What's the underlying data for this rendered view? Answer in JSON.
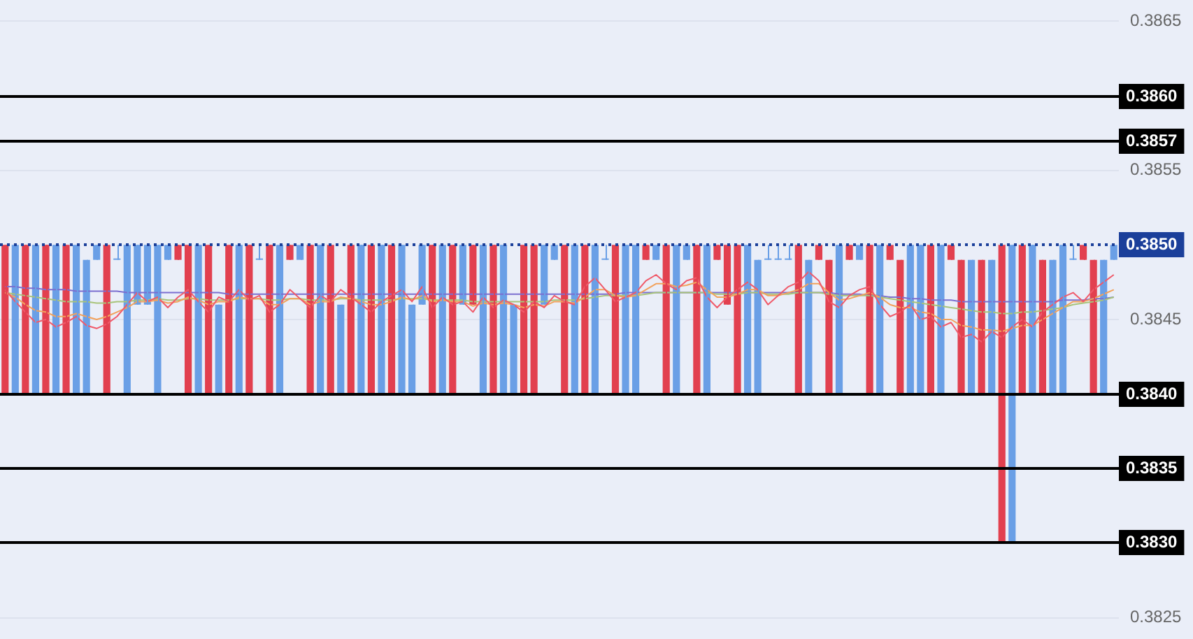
{
  "chart_data": {
    "type": "candlestick",
    "categories": [
      null,
      null,
      null,
      null,
      null,
      null,
      null,
      null,
      null,
      null,
      null,
      null,
      null,
      null,
      null,
      null,
      null,
      null,
      null,
      null,
      null,
      null,
      null,
      null,
      null,
      null,
      null,
      null,
      null,
      null,
      null,
      null,
      null,
      null,
      null,
      null,
      null,
      null,
      null,
      null,
      null,
      null,
      null,
      null,
      null,
      null,
      null,
      null,
      null,
      null,
      null,
      null,
      null,
      null,
      null,
      null,
      null,
      null,
      null,
      null,
      null,
      null,
      null,
      null,
      null,
      null,
      null,
      null,
      null,
      null,
      null,
      null,
      null,
      null,
      null,
      null,
      null,
      null,
      null,
      null,
      null,
      null,
      null,
      null,
      null,
      null,
      null,
      null,
      null,
      null,
      null,
      null,
      null,
      null,
      null,
      null,
      null,
      null,
      null,
      null,
      null,
      null,
      null,
      null,
      null,
      null,
      null,
      null,
      null,
      null
    ],
    "ohlc": [
      [
        0.385,
        0.385,
        0.384,
        0.384
      ],
      [
        0.384,
        0.385,
        0.384,
        0.385
      ],
      [
        0.385,
        0.385,
        0.384,
        0.384
      ],
      [
        0.384,
        0.385,
        0.384,
        0.385
      ],
      [
        0.385,
        0.385,
        0.384,
        0.384
      ],
      [
        0.384,
        0.385,
        0.384,
        0.385
      ],
      [
        0.385,
        0.385,
        0.384,
        0.384
      ],
      [
        0.384,
        0.385,
        0.384,
        0.385
      ],
      [
        0.384,
        0.3849,
        0.384,
        0.3849
      ],
      [
        0.3849,
        0.385,
        0.3849,
        0.385
      ],
      [
        0.385,
        0.385,
        0.384,
        0.384
      ],
      [
        0.3849,
        0.385,
        0.3849,
        0.3849
      ],
      [
        0.384,
        0.385,
        0.384,
        0.385
      ],
      [
        0.3846,
        0.385,
        0.3846,
        0.385
      ],
      [
        0.3846,
        0.385,
        0.3846,
        0.385
      ],
      [
        0.384,
        0.385,
        0.384,
        0.385
      ],
      [
        0.3849,
        0.385,
        0.3849,
        0.385
      ],
      [
        0.385,
        0.385,
        0.3849,
        0.3849
      ],
      [
        0.385,
        0.385,
        0.384,
        0.384
      ],
      [
        0.384,
        0.385,
        0.384,
        0.385
      ],
      [
        0.385,
        0.385,
        0.384,
        0.384
      ],
      [
        0.384,
        0.3846,
        0.384,
        0.3846
      ],
      [
        0.385,
        0.385,
        0.384,
        0.384
      ],
      [
        0.384,
        0.385,
        0.384,
        0.385
      ],
      [
        0.385,
        0.385,
        0.384,
        0.384
      ],
      [
        0.3849,
        0.385,
        0.3849,
        0.3849
      ],
      [
        0.385,
        0.385,
        0.384,
        0.384
      ],
      [
        0.384,
        0.385,
        0.384,
        0.385
      ],
      [
        0.385,
        0.385,
        0.3849,
        0.3849
      ],
      [
        0.3849,
        0.385,
        0.3849,
        0.385
      ],
      [
        0.385,
        0.385,
        0.384,
        0.384
      ],
      [
        0.384,
        0.385,
        0.384,
        0.385
      ],
      [
        0.385,
        0.385,
        0.384,
        0.384
      ],
      [
        0.384,
        0.3846,
        0.384,
        0.3846
      ],
      [
        0.385,
        0.385,
        0.384,
        0.384
      ],
      [
        0.384,
        0.385,
        0.384,
        0.385
      ],
      [
        0.385,
        0.385,
        0.384,
        0.384
      ],
      [
        0.384,
        0.385,
        0.384,
        0.385
      ],
      [
        0.385,
        0.385,
        0.384,
        0.384
      ],
      [
        0.384,
        0.385,
        0.384,
        0.385
      ],
      [
        0.384,
        0.3846,
        0.384,
        0.3846
      ],
      [
        0.3846,
        0.385,
        0.3846,
        0.385
      ],
      [
        0.385,
        0.385,
        0.384,
        0.384
      ],
      [
        0.384,
        0.385,
        0.384,
        0.385
      ],
      [
        0.385,
        0.385,
        0.384,
        0.384
      ],
      [
        0.3846,
        0.385,
        0.3846,
        0.385
      ],
      [
        0.385,
        0.385,
        0.3846,
        0.3846
      ],
      [
        0.384,
        0.385,
        0.384,
        0.385
      ],
      [
        0.385,
        0.385,
        0.384,
        0.384
      ],
      [
        0.384,
        0.385,
        0.384,
        0.385
      ],
      [
        0.384,
        0.3846,
        0.384,
        0.3846
      ],
      [
        0.385,
        0.385,
        0.384,
        0.384
      ],
      [
        0.385,
        0.385,
        0.384,
        0.384
      ],
      [
        0.3846,
        0.385,
        0.3846,
        0.385
      ],
      [
        0.3849,
        0.385,
        0.3849,
        0.385
      ],
      [
        0.385,
        0.385,
        0.384,
        0.384
      ],
      [
        0.384,
        0.385,
        0.384,
        0.385
      ],
      [
        0.385,
        0.385,
        0.384,
        0.384
      ],
      [
        0.384,
        0.385,
        0.384,
        0.385
      ],
      [
        0.3849,
        0.385,
        0.3849,
        0.3849
      ],
      [
        0.385,
        0.385,
        0.384,
        0.384
      ],
      [
        0.384,
        0.385,
        0.384,
        0.385
      ],
      [
        0.384,
        0.385,
        0.384,
        0.385
      ],
      [
        0.385,
        0.385,
        0.3849,
        0.3849
      ],
      [
        0.3849,
        0.385,
        0.3849,
        0.385
      ],
      [
        0.385,
        0.385,
        0.384,
        0.384
      ],
      [
        0.384,
        0.385,
        0.384,
        0.385
      ],
      [
        0.3849,
        0.385,
        0.3849,
        0.385
      ],
      [
        0.385,
        0.385,
        0.384,
        0.384
      ],
      [
        0.384,
        0.385,
        0.384,
        0.385
      ],
      [
        0.385,
        0.385,
        0.3849,
        0.3849
      ],
      [
        0.385,
        0.385,
        0.3846,
        0.3846
      ],
      [
        0.385,
        0.385,
        0.384,
        0.384
      ],
      [
        0.384,
        0.385,
        0.384,
        0.385
      ],
      [
        0.384,
        0.3849,
        0.384,
        0.3849
      ],
      [
        0.3849,
        0.385,
        0.3849,
        0.3849
      ],
      [
        0.3849,
        0.385,
        0.3849,
        0.3849
      ],
      [
        0.3849,
        0.385,
        0.3849,
        0.3849
      ],
      [
        0.385,
        0.385,
        0.384,
        0.384
      ],
      [
        0.384,
        0.3849,
        0.384,
        0.3849
      ],
      [
        0.385,
        0.385,
        0.3849,
        0.3849
      ],
      [
        0.3849,
        0.3849,
        0.384,
        0.384
      ],
      [
        0.384,
        0.385,
        0.384,
        0.385
      ],
      [
        0.385,
        0.385,
        0.3849,
        0.3849
      ],
      [
        0.3849,
        0.385,
        0.3849,
        0.385
      ],
      [
        0.385,
        0.385,
        0.384,
        0.384
      ],
      [
        0.384,
        0.385,
        0.384,
        0.385
      ],
      [
        0.385,
        0.385,
        0.3849,
        0.3849
      ],
      [
        0.3849,
        0.3849,
        0.384,
        0.384
      ],
      [
        0.384,
        0.385,
        0.384,
        0.385
      ],
      [
        0.384,
        0.385,
        0.384,
        0.385
      ],
      [
        0.385,
        0.385,
        0.384,
        0.384
      ],
      [
        0.384,
        0.385,
        0.384,
        0.385
      ],
      [
        0.385,
        0.385,
        0.3849,
        0.3849
      ],
      [
        0.3849,
        0.3849,
        0.384,
        0.384
      ],
      [
        0.384,
        0.3849,
        0.384,
        0.3849
      ],
      [
        0.3849,
        0.3849,
        0.384,
        0.384
      ],
      [
        0.384,
        0.3849,
        0.384,
        0.3849
      ],
      [
        0.385,
        0.385,
        0.383,
        0.383
      ],
      [
        0.383,
        0.385,
        0.383,
        0.385
      ],
      [
        0.385,
        0.385,
        0.384,
        0.384
      ],
      [
        0.384,
        0.385,
        0.384,
        0.385
      ],
      [
        0.3849,
        0.3849,
        0.384,
        0.384
      ],
      [
        0.384,
        0.3849,
        0.384,
        0.3849
      ],
      [
        0.384,
        0.385,
        0.384,
        0.385
      ],
      [
        0.3849,
        0.385,
        0.3849,
        0.3849
      ],
      [
        0.385,
        0.385,
        0.3849,
        0.3849
      ],
      [
        0.3849,
        0.3849,
        0.384,
        0.384
      ],
      [
        0.384,
        0.3849,
        0.384,
        0.3849
      ],
      [
        0.3849,
        0.385,
        0.3849,
        0.385
      ]
    ],
    "colors": [
      "#e2404f",
      "#6a9fe6",
      "#e2404f",
      "#6a9fe6",
      "#e2404f",
      "#6a9fe6",
      "#e2404f",
      "#6a9fe6",
      "#6a9fe6",
      "#6a9fe6",
      "#e2404f",
      "#6a9fe6",
      "#6a9fe6",
      "#6a9fe6",
      "#6a9fe6",
      "#6a9fe6",
      "#6a9fe6",
      "#e2404f",
      "#e2404f",
      "#6a9fe6",
      "#e2404f",
      "#6a9fe6",
      "#e2404f",
      "#6a9fe6",
      "#e2404f",
      "#6a9fe6",
      "#e2404f",
      "#6a9fe6",
      "#e2404f",
      "#6a9fe6",
      "#e2404f",
      "#6a9fe6",
      "#e2404f",
      "#6a9fe6",
      "#e2404f",
      "#6a9fe6",
      "#e2404f",
      "#6a9fe6",
      "#e2404f",
      "#6a9fe6",
      "#6a9fe6",
      "#6a9fe6",
      "#e2404f",
      "#6a9fe6",
      "#e2404f",
      "#6a9fe6",
      "#e2404f",
      "#6a9fe6",
      "#e2404f",
      "#6a9fe6",
      "#6a9fe6",
      "#e2404f",
      "#e2404f",
      "#6a9fe6",
      "#6a9fe6",
      "#e2404f",
      "#6a9fe6",
      "#e2404f",
      "#6a9fe6",
      "#6a9fe6",
      "#e2404f",
      "#6a9fe6",
      "#6a9fe6",
      "#e2404f",
      "#6a9fe6",
      "#e2404f",
      "#6a9fe6",
      "#6a9fe6",
      "#e2404f",
      "#6a9fe6",
      "#e2404f",
      "#e2404f",
      "#e2404f",
      "#6a9fe6",
      "#6a9fe6",
      "#6a9fe6",
      "#6a9fe6",
      "#6a9fe6",
      "#e2404f",
      "#6a9fe6",
      "#e2404f",
      "#e2404f",
      "#6a9fe6",
      "#e2404f",
      "#6a9fe6",
      "#e2404f",
      "#6a9fe6",
      "#e2404f",
      "#e2404f",
      "#6a9fe6",
      "#6a9fe6",
      "#e2404f",
      "#6a9fe6",
      "#e2404f",
      "#e2404f",
      "#6a9fe6",
      "#e2404f",
      "#6a9fe6",
      "#e2404f",
      "#6a9fe6",
      "#e2404f",
      "#6a9fe6",
      "#e2404f",
      "#6a9fe6",
      "#6a9fe6",
      "#6a9fe6",
      "#e2404f",
      "#e2404f",
      "#6a9fe6",
      "#6a9fe6"
    ],
    "series": [
      {
        "type": "line",
        "color": "#f05a6a",
        "values": [
          0.3847,
          0.38462,
          0.38455,
          0.38448,
          0.3845,
          0.38445,
          0.38448,
          0.38452,
          0.38446,
          0.38444,
          0.38447,
          0.38452,
          0.3846,
          0.38468,
          0.38462,
          0.38465,
          0.38458,
          0.38465,
          0.3847,
          0.38462,
          0.38455,
          0.38465,
          0.38462,
          0.3847,
          0.38463,
          0.38466,
          0.38455,
          0.3846,
          0.3847,
          0.38464,
          0.38458,
          0.38466,
          0.38462,
          0.3847,
          0.38465,
          0.3846,
          0.38455,
          0.38462,
          0.38466,
          0.3847,
          0.38462,
          0.38472,
          0.38458,
          0.38465,
          0.3846,
          0.38462,
          0.38455,
          0.38465,
          0.38458,
          0.38463,
          0.3846,
          0.38455,
          0.38462,
          0.38458,
          0.38466,
          0.38462,
          0.3846,
          0.38472,
          0.38478,
          0.3847,
          0.38462,
          0.38465,
          0.38468,
          0.38476,
          0.3848,
          0.38474,
          0.3847,
          0.38476,
          0.38478,
          0.38465,
          0.38458,
          0.38465,
          0.3847,
          0.38475,
          0.3847,
          0.3846,
          0.38466,
          0.38472,
          0.38475,
          0.38482,
          0.38476,
          0.38462,
          0.38458,
          0.38466,
          0.3847,
          0.38472,
          0.3846,
          0.38452,
          0.38455,
          0.3846,
          0.3845,
          0.38452,
          0.38445,
          0.38448,
          0.38438,
          0.3844,
          0.38435,
          0.38442,
          0.38438,
          0.38445,
          0.3845,
          0.38445,
          0.38455,
          0.3846,
          0.38465,
          0.38468,
          0.38462,
          0.3847,
          0.38475,
          0.3848
        ]
      },
      {
        "type": "line",
        "color": "#f2a25c",
        "values": [
          0.38468,
          0.38465,
          0.3846,
          0.38456,
          0.38455,
          0.38452,
          0.38452,
          0.38454,
          0.38452,
          0.3845,
          0.38452,
          0.38455,
          0.38458,
          0.38462,
          0.38462,
          0.38463,
          0.38461,
          0.38462,
          0.38465,
          0.38463,
          0.3846,
          0.38462,
          0.38462,
          0.38465,
          0.38464,
          0.38464,
          0.3846,
          0.3846,
          0.38464,
          0.38464,
          0.3846,
          0.38462,
          0.38462,
          0.38465,
          0.38464,
          0.38462,
          0.3846,
          0.3846,
          0.38462,
          0.38465,
          0.38463,
          0.38466,
          0.38462,
          0.38463,
          0.38462,
          0.38462,
          0.38459,
          0.38461,
          0.3846,
          0.38461,
          0.3846,
          0.38458,
          0.3846,
          0.38459,
          0.38462,
          0.38462,
          0.38461,
          0.38465,
          0.3847,
          0.3847,
          0.38466,
          0.38465,
          0.38466,
          0.3847,
          0.38474,
          0.38474,
          0.38472,
          0.38473,
          0.38475,
          0.3847,
          0.38465,
          0.38465,
          0.38467,
          0.3847,
          0.3847,
          0.38466,
          0.38466,
          0.38468,
          0.3847,
          0.38474,
          0.38474,
          0.38468,
          0.38463,
          0.38464,
          0.38466,
          0.38468,
          0.38465,
          0.3846,
          0.38458,
          0.38458,
          0.38455,
          0.38454,
          0.3845,
          0.3845,
          0.38446,
          0.38445,
          0.38443,
          0.38443,
          0.38442,
          0.38444,
          0.38446,
          0.38446,
          0.3845,
          0.38454,
          0.38458,
          0.38462,
          0.38462,
          0.38464,
          0.38467,
          0.3847
        ]
      },
      {
        "type": "line",
        "color": "#a8c47a",
        "values": [
          0.38468,
          0.38467,
          0.38466,
          0.38465,
          0.38464,
          0.38463,
          0.38462,
          0.38462,
          0.38462,
          0.38461,
          0.38461,
          0.38462,
          0.38462,
          0.38463,
          0.38463,
          0.38464,
          0.38463,
          0.38463,
          0.38464,
          0.38464,
          0.38463,
          0.38463,
          0.38463,
          0.38464,
          0.38464,
          0.38464,
          0.38463,
          0.38463,
          0.38464,
          0.38464,
          0.38463,
          0.38463,
          0.38463,
          0.38464,
          0.38464,
          0.38463,
          0.38463,
          0.38463,
          0.38463,
          0.38464,
          0.38464,
          0.38464,
          0.38463,
          0.38463,
          0.38463,
          0.38463,
          0.38462,
          0.38462,
          0.38462,
          0.38462,
          0.38462,
          0.38462,
          0.38462,
          0.38462,
          0.38463,
          0.38463,
          0.38463,
          0.38464,
          0.38465,
          0.38466,
          0.38466,
          0.38466,
          0.38466,
          0.38467,
          0.38468,
          0.38468,
          0.38468,
          0.38468,
          0.38468,
          0.38468,
          0.38467,
          0.38467,
          0.38467,
          0.38468,
          0.38468,
          0.38467,
          0.38467,
          0.38467,
          0.38468,
          0.38468,
          0.38468,
          0.38467,
          0.38466,
          0.38466,
          0.38466,
          0.38466,
          0.38465,
          0.38464,
          0.38463,
          0.38462,
          0.38461,
          0.3846,
          0.38459,
          0.38458,
          0.38457,
          0.38456,
          0.38455,
          0.38455,
          0.38454,
          0.38454,
          0.38455,
          0.38455,
          0.38456,
          0.38457,
          0.38458,
          0.3846,
          0.38461,
          0.38462,
          0.38463,
          0.38465
        ]
      },
      {
        "type": "line",
        "color": "#7b6fd0",
        "values": [
          0.38472,
          0.38472,
          0.38471,
          0.38471,
          0.3847,
          0.3847,
          0.3847,
          0.38469,
          0.38469,
          0.38469,
          0.38469,
          0.38469,
          0.38468,
          0.38468,
          0.38468,
          0.38468,
          0.38468,
          0.38468,
          0.38468,
          0.38468,
          0.38468,
          0.38468,
          0.38467,
          0.38467,
          0.38467,
          0.38467,
          0.38467,
          0.38467,
          0.38467,
          0.38467,
          0.38467,
          0.38467,
          0.38467,
          0.38467,
          0.38467,
          0.38467,
          0.38467,
          0.38467,
          0.38467,
          0.38467,
          0.38467,
          0.38467,
          0.38467,
          0.38467,
          0.38467,
          0.38467,
          0.38467,
          0.38467,
          0.38467,
          0.38467,
          0.38467,
          0.38467,
          0.38467,
          0.38467,
          0.38467,
          0.38467,
          0.38467,
          0.38467,
          0.38467,
          0.38467,
          0.38467,
          0.38468,
          0.38468,
          0.38468,
          0.38468,
          0.38468,
          0.38468,
          0.38468,
          0.38468,
          0.38468,
          0.38468,
          0.38468,
          0.38468,
          0.38468,
          0.38468,
          0.38468,
          0.38468,
          0.38468,
          0.38468,
          0.38468,
          0.38468,
          0.38468,
          0.38467,
          0.38467,
          0.38467,
          0.38466,
          0.38466,
          0.38465,
          0.38465,
          0.38464,
          0.38464,
          0.38463,
          0.38463,
          0.38463,
          0.38462,
          0.38462,
          0.38462,
          0.38462,
          0.38462,
          0.38462,
          0.38462,
          0.38462,
          0.38462,
          0.38462,
          0.38463,
          0.38463,
          0.38463,
          0.38464,
          0.38464,
          0.38465
        ]
      }
    ],
    "ylim": [
      0.3825,
      0.3865
    ],
    "yticks": [
      0.3825,
      0.3845,
      0.3855,
      0.3865
    ],
    "tick_labels": "y",
    "grid": "y",
    "legend": false,
    "ref_lines": [
      {
        "axis": "y",
        "value": 0.386,
        "label": "0.3860",
        "color": "#000000",
        "line_style": "solid"
      },
      {
        "axis": "y",
        "value": 0.3857,
        "label": "0.3857",
        "color": "#000000",
        "line_style": "solid"
      },
      {
        "axis": "y",
        "value": 0.385,
        "label": "0.3850",
        "color": "#1b3f9a",
        "line_style": "dotted"
      },
      {
        "axis": "y",
        "value": 0.384,
        "label": "0.3840",
        "color": "#000000",
        "line_style": "solid"
      },
      {
        "axis": "y",
        "value": 0.3835,
        "label": "0.3835",
        "color": "#000000",
        "line_style": "solid"
      },
      {
        "axis": "y",
        "value": 0.383,
        "label": "0.3830",
        "color": "#000000",
        "line_style": "solid"
      }
    ]
  }
}
